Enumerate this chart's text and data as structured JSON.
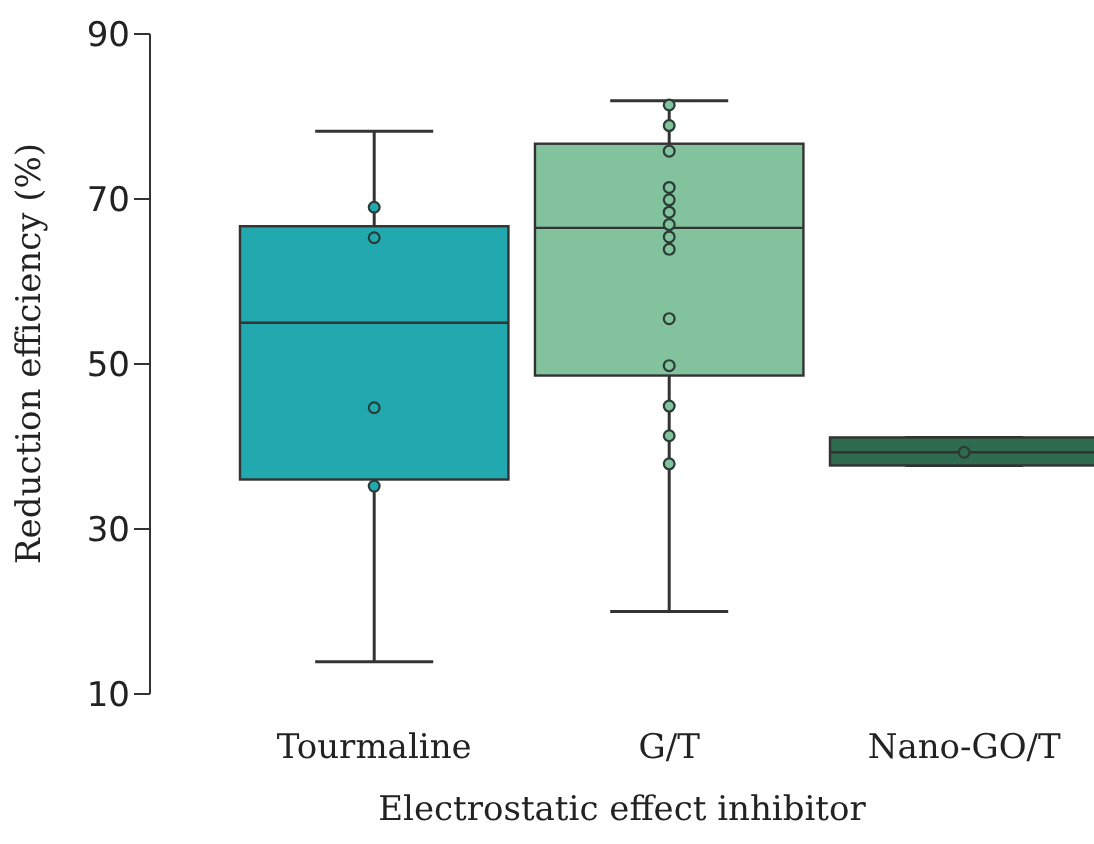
{
  "chart_data": {
    "type": "box",
    "xlabel": "Electrostatic effect inhibitor",
    "ylabel": "Reduction efficiency (%)",
    "categories": [
      "Tourmaline",
      "G/T",
      "Nano-GO/T"
    ],
    "colors": [
      "#22a9b0",
      "#82c39e",
      "#2f6b4f"
    ],
    "ylim": [
      10,
      90
    ],
    "yticks": [
      10,
      30,
      50,
      70,
      90
    ],
    "boxes": [
      {
        "low": 13.9,
        "q1": 36,
        "median": 55,
        "q3": 66.7,
        "high": 78.2
      },
      {
        "low": 20,
        "q1": 48.6,
        "median": 66.5,
        "q3": 76.7,
        "high": 81.9
      },
      {
        "low": 37.7,
        "q1": 37.7,
        "median": 39.3,
        "q3": 41.1,
        "high": 41.1
      }
    ],
    "series": [
      {
        "type": "scatter",
        "marker": "circle",
        "color": "#22a9b0",
        "x": [
          "Tourmaline",
          "Tourmaline",
          "Tourmaline",
          "Tourmaline"
        ],
        "values": [
          69,
          65.3,
          44.7,
          35.2
        ]
      },
      {
        "type": "scatter",
        "marker": "circle",
        "color": "#82c39e",
        "x": [
          "G/T",
          "G/T",
          "G/T",
          "G/T",
          "G/T",
          "G/T",
          "G/T",
          "G/T",
          "G/T",
          "G/T",
          "G/T",
          "G/T",
          "G/T",
          "G/T"
        ],
        "values": [
          81.4,
          78.9,
          75.8,
          71.4,
          69.9,
          68.4,
          66.9,
          65.4,
          63.9,
          55.5,
          49.8,
          44.9,
          41.3,
          37.9
        ]
      },
      {
        "type": "scatter",
        "marker": "circle",
        "color": "#2f6b4f",
        "x": [
          "Nano-GO/T"
        ],
        "values": [
          39.3
        ]
      }
    ]
  }
}
